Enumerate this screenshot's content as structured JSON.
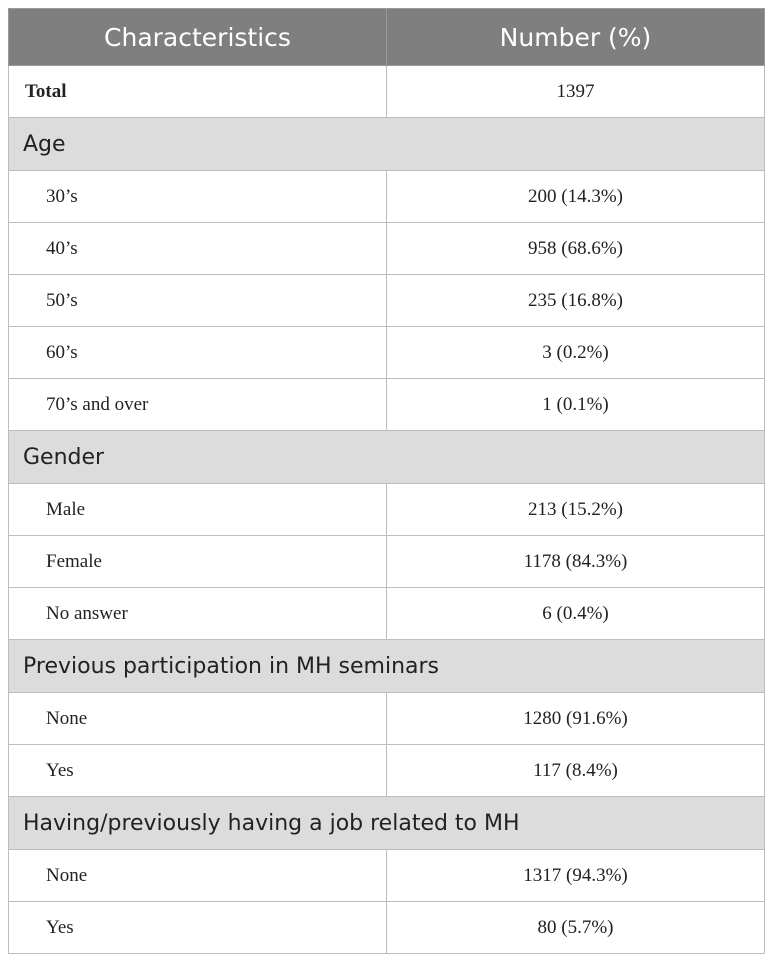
{
  "header": {
    "col1": "Characteristics",
    "col2": "Number (%)"
  },
  "total": {
    "label": "Total",
    "value": "1397"
  },
  "age": {
    "title": "Age",
    "rows": [
      {
        "label": "30’s",
        "value": "200 (14.3%)"
      },
      {
        "label": "40’s",
        "value": "958 (68.6%)"
      },
      {
        "label": "50’s",
        "value": "235 (16.8%)"
      },
      {
        "label": "60’s",
        "value": "3 (0.2%)"
      },
      {
        "label": "70’s and over",
        "value": "1 (0.1%)"
      }
    ]
  },
  "gender": {
    "title": "Gender",
    "rows": [
      {
        "label": "Male",
        "value": "213 (15.2%)"
      },
      {
        "label": "Female",
        "value": "1178 (84.3%)"
      },
      {
        "label": "No answer",
        "value": "6 (0.4%)"
      }
    ]
  },
  "seminars": {
    "title": "Previous participation in MH seminars",
    "rows": [
      {
        "label": "None",
        "value": "1280 (91.6%)"
      },
      {
        "label": "Yes",
        "value": "117 (8.4%)"
      }
    ]
  },
  "job": {
    "title": "Having/previously having a job related to MH",
    "rows": [
      {
        "label": "None",
        "value": "1317 (94.3%)"
      },
      {
        "label": "Yes",
        "value": "80 (5.7%)"
      }
    ]
  }
}
